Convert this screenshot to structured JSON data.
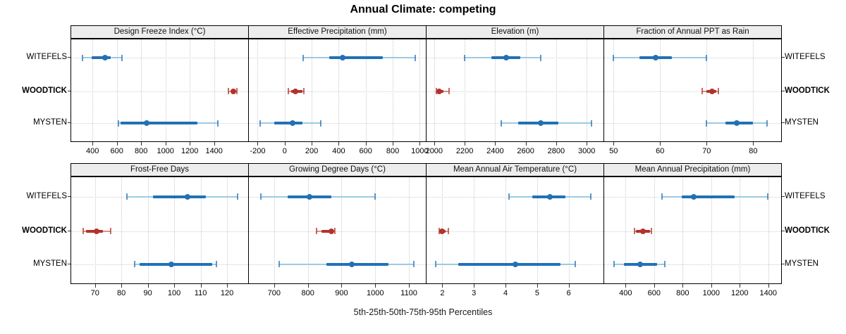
{
  "title": "Annual Climate: competing",
  "caption": "5th-25th-50th-75th-95th Percentiles",
  "sites": [
    "WITEFELS",
    "WOODTICK",
    "MYSTEN"
  ],
  "emphasis_site": "WOODTICK",
  "colors": {
    "blue": "#2171b5",
    "blue_light": "#9ecae1",
    "red": "#b2332b",
    "red_light": "#d4918b",
    "grid": "#c9c9c9",
    "strip_bg": "#ededed",
    "border": "#000000"
  },
  "chart_data": {
    "type": "dotplot-intervals",
    "percentiles": [
      5,
      25,
      50,
      75,
      95
    ],
    "glyph_note": "thin line with end caps = 5th-95th percentile, thick bar = 25th-75th percentile, dot = median",
    "panels": [
      {
        "row": 0,
        "title": "Design Freeze Index (°C)",
        "xlim": [
          225,
          1680
        ],
        "ticks": [
          400,
          600,
          800,
          1000,
          1200,
          1400
        ],
        "values": {
          "WITEFELS": [
            320,
            395,
            505,
            550,
            640
          ],
          "WOODTICK": [
            1515,
            1545,
            1560,
            1575,
            1585
          ],
          "MYSTEN": [
            615,
            630,
            845,
            1260,
            1430
          ]
        }
      },
      {
        "row": 0,
        "title": "Effective Precipitation (mm)",
        "xlim": [
          -265,
          1045
        ],
        "ticks": [
          -200,
          0,
          200,
          400,
          600,
          800,
          1000
        ],
        "values": {
          "WITEFELS": [
            135,
            330,
            430,
            725,
            965
          ],
          "WOODTICK": [
            25,
            50,
            80,
            130,
            140
          ],
          "MYSTEN": [
            -180,
            -75,
            60,
            130,
            265
          ]
        }
      },
      {
        "row": 0,
        "title": "Elevation (m)",
        "xlim": [
          1950,
          3110
        ],
        "ticks": [
          2000,
          2200,
          2400,
          2600,
          2800,
          3000
        ],
        "values": {
          "WITEFELS": [
            2200,
            2375,
            2470,
            2565,
            2700
          ],
          "WOODTICK": [
            2015,
            2025,
            2035,
            2060,
            2100
          ],
          "MYSTEN": [
            2440,
            2550,
            2700,
            2815,
            3030
          ]
        }
      },
      {
        "row": 0,
        "title": "Fraction of Annual PPT as Rain",
        "xlim": [
          48,
          86
        ],
        "ticks": [
          50,
          60,
          70,
          80
        ],
        "values": {
          "WITEFELS": [
            50,
            55.5,
            59,
            62.5,
            70
          ],
          "WOODTICK": [
            69,
            70,
            71.2,
            72,
            72.5
          ],
          "MYSTEN": [
            70,
            74,
            76.5,
            80,
            83
          ]
        }
      },
      {
        "row": 1,
        "title": "Frost-Free Days",
        "xlim": [
          61,
          128
        ],
        "ticks": [
          70,
          80,
          90,
          100,
          110,
          120
        ],
        "values": {
          "WITEFELS": [
            82,
            92,
            105,
            112,
            124
          ],
          "WOODTICK": [
            65.5,
            66.5,
            70.5,
            73,
            76
          ],
          "MYSTEN": [
            85,
            87,
            99,
            114.5,
            116
          ]
        }
      },
      {
        "row": 1,
        "title": "Growing Degree Days (°C)",
        "xlim": [
          625,
          1150
        ],
        "ticks": [
          700,
          800,
          900,
          1000,
          1100
        ],
        "values": {
          "WITEFELS": [
            660,
            740,
            805,
            870,
            1000
          ],
          "WOODTICK": [
            825,
            840,
            870,
            875,
            880
          ],
          "MYSTEN": [
            715,
            855,
            930,
            1040,
            1115
          ]
        }
      },
      {
        "row": 1,
        "title": "Mean Annual Air Temperature (°C)",
        "xlim": [
          1.5,
          7.1
        ],
        "ticks": [
          2,
          3,
          4,
          5,
          6
        ],
        "values": {
          "WITEFELS": [
            4.1,
            4.85,
            5.4,
            5.9,
            6.7
          ],
          "WOODTICK": [
            1.9,
            1.95,
            2.0,
            2.1,
            2.2
          ],
          "MYSTEN": [
            1.8,
            2.5,
            4.3,
            5.75,
            6.2
          ]
        }
      },
      {
        "row": 1,
        "title": "Mean Annual Precipitation (mm)",
        "xlim": [
          250,
          1490
        ],
        "ticks": [
          400,
          600,
          800,
          1000,
          1200,
          1400
        ],
        "values": {
          "WITEFELS": [
            655,
            795,
            875,
            1165,
            1395
          ],
          "WOODTICK": [
            460,
            470,
            520,
            570,
            580
          ],
          "MYSTEN": [
            320,
            390,
            500,
            620,
            675
          ]
        }
      }
    ]
  }
}
